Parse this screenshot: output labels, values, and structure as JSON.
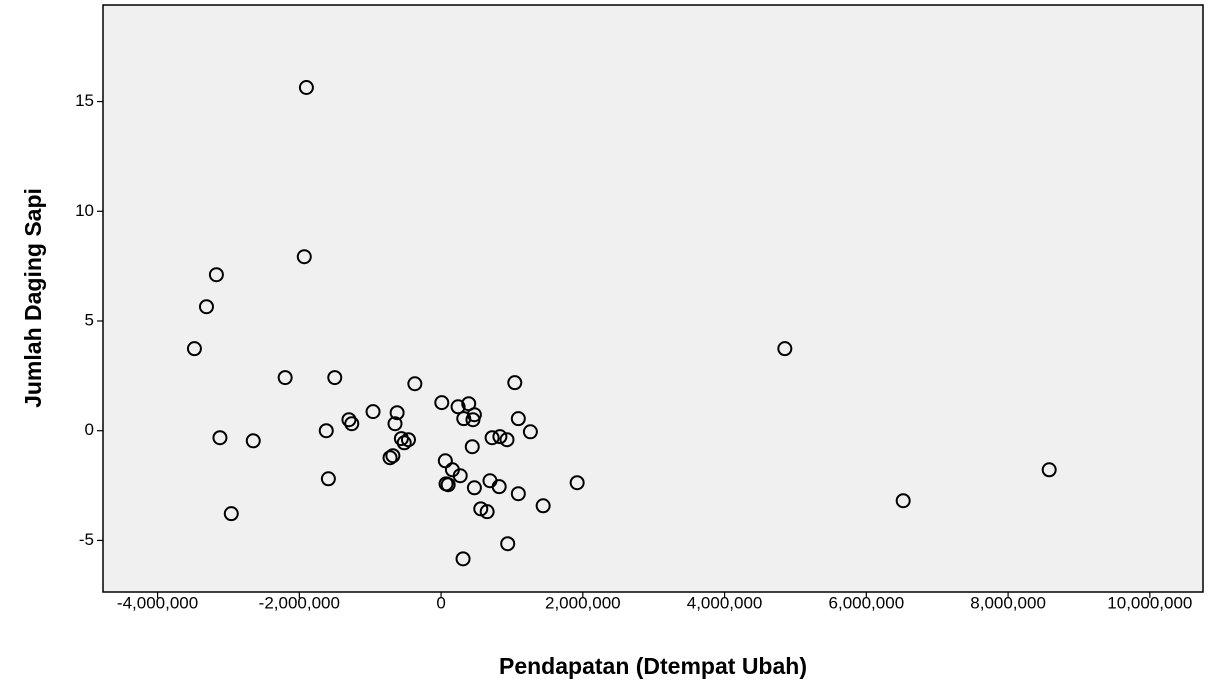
{
  "chart_data": {
    "type": "scatter",
    "xlabel": "Pendapatan (Dtempat Ubah)",
    "ylabel": "Jumlah Daging Sapi",
    "color": "#000000",
    "x": [
      -1900000,
      -1930000,
      -3170000,
      -3310000,
      -3480000,
      -2200000,
      -1500000,
      -370000,
      1040000,
      4850000,
      -3120000,
      -2650000,
      -2960000,
      -1620000,
      -1590000,
      -1300000,
      -1260000,
      -960000,
      -620000,
      -650000,
      -560000,
      -520000,
      -460000,
      -720000,
      -680000,
      10000,
      240000,
      390000,
      470000,
      450000,
      320000,
      440000,
      60000,
      160000,
      270000,
      70000,
      100000,
      470000,
      690000,
      820000,
      720000,
      830000,
      930000,
      1090000,
      1260000,
      1090000,
      1440000,
      560000,
      650000,
      940000,
      310000,
      1920000,
      6520000,
      8580000
    ],
    "values": [
      15.64,
      7.93,
      7.11,
      5.65,
      3.74,
      2.42,
      2.42,
      2.14,
      2.19,
      3.74,
      -0.32,
      -0.46,
      -3.78,
      0,
      -2.19,
      0.5,
      0.32,
      0.87,
      0.82,
      0.32,
      -0.36,
      -0.55,
      -0.41,
      -1.23,
      -1.14,
      1.28,
      1.09,
      1.23,
      0.73,
      0.5,
      0.55,
      -0.73,
      -1.37,
      -1.78,
      -2.05,
      -2.42,
      -2.46,
      -2.6,
      -2.28,
      -2.55,
      -0.32,
      -0.27,
      -0.41,
      0.55,
      -0.05,
      -2.87,
      -3.42,
      -3.56,
      -3.69,
      -5.15,
      -5.84,
      -2.37,
      -3.19,
      -1.78
    ],
    "xlim": [
      -4770000,
      10750000
    ],
    "ylim": [
      -7.35,
      19.4
    ],
    "xticks": [
      {
        "value": -4000000,
        "label": "-4,000,000"
      },
      {
        "value": -2000000,
        "label": "-2,000,000"
      },
      0,
      {
        "value": 2000000,
        "label": "2,000,000"
      },
      {
        "value": 4000000,
        "label": "4,000,000"
      },
      {
        "value": 6000000,
        "label": "6,000,000"
      },
      {
        "value": 8000000,
        "label": "8,000,000"
      },
      {
        "value": 10000000,
        "label": "10,000,000"
      }
    ],
    "yticks": [
      -5,
      0,
      5,
      10,
      15
    ]
  }
}
